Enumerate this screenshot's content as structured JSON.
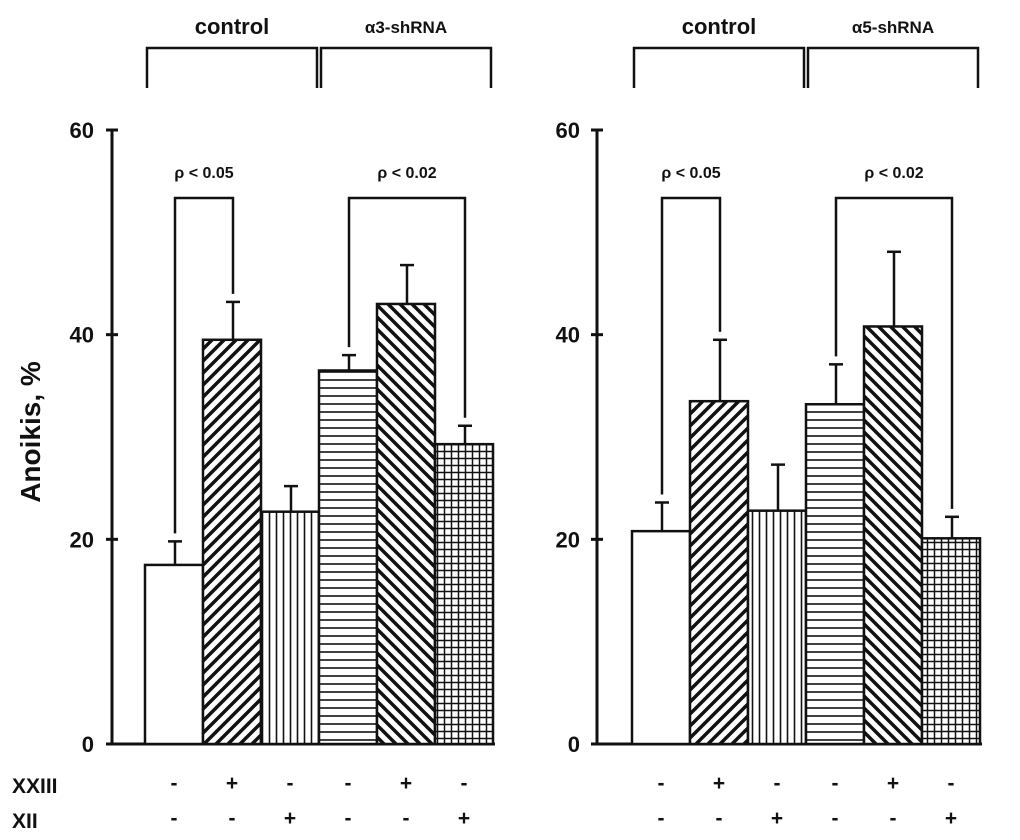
{
  "chart_data": [
    {
      "type": "bar",
      "ylabel": "Anoikis, %",
      "ylim": [
        0,
        60
      ],
      "yticks": [
        "0",
        "20",
        "40",
        "60"
      ],
      "groups": [
        {
          "label": "control",
          "bars": 3
        },
        {
          "label": "α3-shRNA",
          "bars": 3
        }
      ],
      "bars": [
        {
          "value": 17.5,
          "error": 2.3,
          "pattern": "none"
        },
        {
          "value": 39.5,
          "error": 3.7,
          "pattern": "diag-up"
        },
        {
          "value": 22.7,
          "error": 2.5,
          "pattern": "vertical"
        },
        {
          "value": 36.5,
          "error": 1.5,
          "pattern": "horizontal"
        },
        {
          "value": 43.0,
          "error": 3.8,
          "pattern": "diag-down"
        },
        {
          "value": 29.3,
          "error": 1.8,
          "pattern": "grid"
        }
      ],
      "comparisons": [
        {
          "from": 0,
          "to": 1,
          "text": "ρ < 0.05"
        },
        {
          "from": 3,
          "to": 5,
          "text": "ρ < 0.02"
        }
      ],
      "conditions": {
        "XXIII": [
          "-",
          "+",
          "-",
          "-",
          "+",
          "-"
        ],
        "XII": [
          "-",
          "-",
          "+",
          "-",
          "-",
          "+"
        ]
      }
    },
    {
      "type": "bar",
      "ylim": [
        0,
        60
      ],
      "yticks": [
        "0",
        "20",
        "40",
        "60"
      ],
      "groups": [
        {
          "label": "control",
          "bars": 3
        },
        {
          "label": "α5-shRNA",
          "bars": 3
        }
      ],
      "bars": [
        {
          "value": 20.8,
          "error": 2.8,
          "pattern": "none"
        },
        {
          "value": 33.5,
          "error": 6.0,
          "pattern": "diag-up"
        },
        {
          "value": 22.8,
          "error": 4.5,
          "pattern": "vertical"
        },
        {
          "value": 33.2,
          "error": 3.9,
          "pattern": "horizontal"
        },
        {
          "value": 40.8,
          "error": 7.3,
          "pattern": "diag-down"
        },
        {
          "value": 20.1,
          "error": 2.1,
          "pattern": "grid"
        }
      ],
      "comparisons": [
        {
          "from": 0,
          "to": 1,
          "text": "ρ < 0.05"
        },
        {
          "from": 3,
          "to": 5,
          "text": "ρ < 0.02"
        }
      ],
      "conditions": {
        "XXIII": [
          "-",
          "+",
          "-",
          "-",
          "+",
          "-"
        ],
        "XII": [
          "-",
          "-",
          "+",
          "-",
          "-",
          "+"
        ]
      }
    }
  ],
  "row_labels": {
    "XXIII": "XXIII",
    "XII": "XII"
  }
}
